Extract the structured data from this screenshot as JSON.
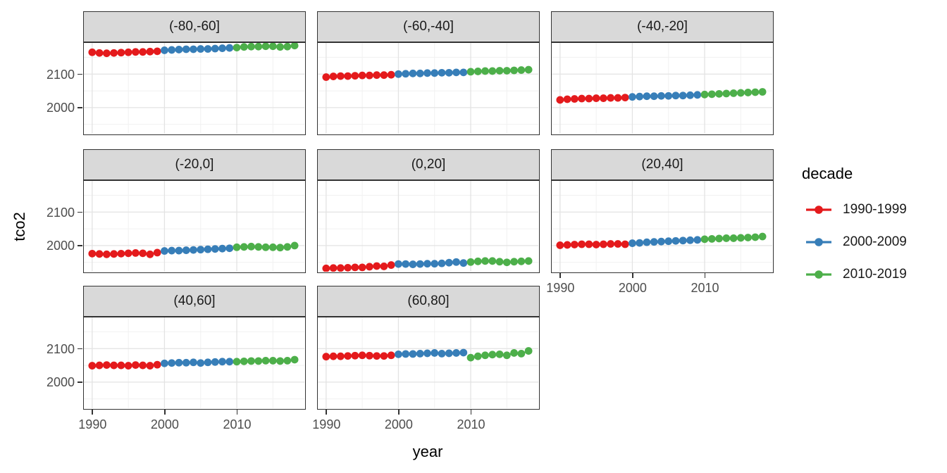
{
  "chart_data": {
    "type": "scatter",
    "title": "",
    "xlabel": "year",
    "ylabel": "tco2",
    "x_ticks": [
      1990,
      2000,
      2010
    ],
    "x_minor_ticks": [
      1995,
      2005,
      2015
    ],
    "y_ticks": [
      2000,
      2100
    ],
    "y_minor_ticks": [
      1950,
      2050,
      2150
    ],
    "xlim": [
      1988.7,
      2019.5
    ],
    "ylim": [
      1919,
      2196
    ],
    "grid": true,
    "years": [
      1990,
      1991,
      1992,
      1993,
      1994,
      1995,
      1996,
      1997,
      1998,
      1999,
      2000,
      2001,
      2002,
      2003,
      2004,
      2005,
      2006,
      2007,
      2008,
      2009,
      2010,
      2011,
      2012,
      2013,
      2014,
      2015,
      2016,
      2017,
      2018
    ],
    "legend": {
      "title": "decade",
      "position": "right",
      "entries": [
        {
          "label": "1990-1999",
          "color": "#E41A1C",
          "year_start": 1990,
          "year_end": 1999
        },
        {
          "label": "2000-2009",
          "color": "#377EB8",
          "year_start": 2000,
          "year_end": 2009
        },
        {
          "label": "2010-2019",
          "color": "#4DAF4A",
          "year_start": 2010,
          "year_end": 2019
        }
      ]
    },
    "facets": [
      {
        "label": "(-80,-60]",
        "tco2": [
          2165,
          2163,
          2162,
          2163,
          2164,
          2165,
          2166,
          2166,
          2167,
          2168,
          2171,
          2172,
          2173,
          2174,
          2174,
          2175,
          2175,
          2176,
          2177,
          2178,
          2179,
          2181,
          2182,
          2182,
          2183,
          2183,
          2181,
          2182,
          2185
        ]
      },
      {
        "label": "(-60,-40]",
        "tco2": [
          2091,
          2093,
          2094,
          2094,
          2095,
          2096,
          2096,
          2097,
          2097,
          2098,
          2100,
          2101,
          2102,
          2102,
          2103,
          2103,
          2104,
          2104,
          2105,
          2105,
          2107,
          2108,
          2109,
          2109,
          2110,
          2110,
          2111,
          2112,
          2113
        ]
      },
      {
        "label": "(-40,-20]",
        "tco2": [
          2023,
          2025,
          2026,
          2027,
          2027,
          2028,
          2028,
          2029,
          2029,
          2030,
          2032,
          2033,
          2034,
          2034,
          2035,
          2035,
          2036,
          2036,
          2037,
          2038,
          2039,
          2040,
          2041,
          2042,
          2043,
          2044,
          2045,
          2046,
          2047
        ]
      },
      {
        "label": "(-20,0]",
        "tco2": [
          1976,
          1975,
          1974,
          1975,
          1976,
          1977,
          1978,
          1977,
          1974,
          1979,
          1984,
          1985,
          1985,
          1986,
          1987,
          1988,
          1989,
          1990,
          1991,
          1992,
          1995,
          1996,
          1997,
          1996,
          1995,
          1995,
          1994,
          1996,
          2000
        ]
      },
      {
        "label": "(0,20]",
        "tco2": [
          1932,
          1933,
          1933,
          1934,
          1935,
          1935,
          1937,
          1939,
          1938,
          1942,
          1945,
          1945,
          1944,
          1945,
          1946,
          1946,
          1947,
          1949,
          1951,
          1948,
          1951,
          1953,
          1954,
          1954,
          1952,
          1950,
          1952,
          1953,
          1954
        ]
      },
      {
        "label": "(20,40]",
        "tco2": [
          2001,
          2002,
          2003,
          2004,
          2004,
          2003,
          2004,
          2005,
          2005,
          2004,
          2007,
          2008,
          2010,
          2011,
          2012,
          2013,
          2014,
          2015,
          2016,
          2017,
          2019,
          2020,
          2021,
          2022,
          2022,
          2023,
          2024,
          2025,
          2027
        ]
      },
      {
        "label": "(40,60]",
        "tco2": [
          2049,
          2050,
          2051,
          2050,
          2050,
          2049,
          2051,
          2050,
          2049,
          2052,
          2056,
          2057,
          2058,
          2058,
          2059,
          2057,
          2059,
          2060,
          2061,
          2061,
          2061,
          2062,
          2063,
          2063,
          2064,
          2064,
          2063,
          2064,
          2067
        ]
      },
      {
        "label": "(60,80]",
        "tco2": [
          2076,
          2077,
          2077,
          2078,
          2079,
          2080,
          2079,
          2078,
          2078,
          2080,
          2083,
          2084,
          2084,
          2085,
          2086,
          2087,
          2085,
          2086,
          2087,
          2088,
          2073,
          2077,
          2080,
          2082,
          2083,
          2080,
          2087,
          2085,
          2093
        ]
      }
    ],
    "colors": {
      "strip_background": "#D9D9D9",
      "panel_border": "#333333",
      "grid_major": "#E3E3E3",
      "grid_minor": "#F1F1F1",
      "tick_text": "#4D4D4D",
      "axis_title_text": "#000000"
    }
  }
}
